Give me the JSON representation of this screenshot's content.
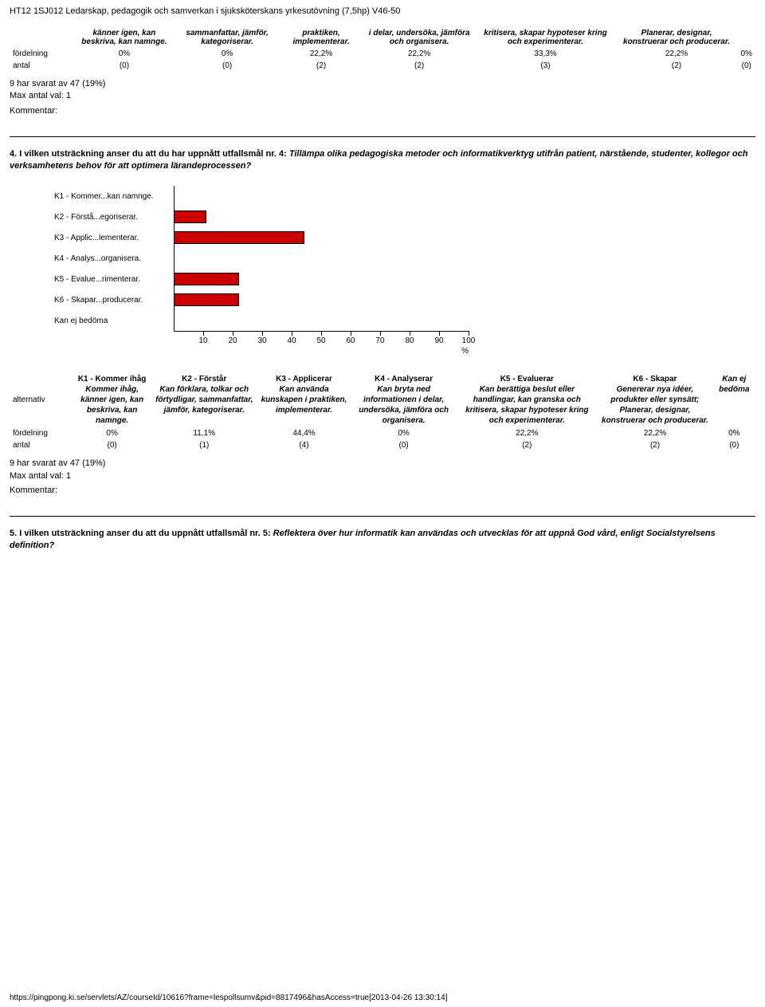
{
  "header": "HT12 1SJ012 Ledarskap, pedagogik och samverkan i sjuksköterskans yrkesutövning (7,5hp) V46-50",
  "table1": {
    "row_label_alt": "",
    "row_label_ford": "fördelning",
    "row_label_antal": "antal",
    "headers": [
      "känner igen, kan beskriva, kan namnge.",
      "sammanfattar, jämför, kategoriserar.",
      "praktiken, implementerar.",
      "i delar, undersöka, jämföra och organisera.",
      "kritisera, skapar hypoteser kring och experimenterar.",
      "Planerar, designar, konstruerar och producerar.",
      ""
    ],
    "fordelning": [
      "0%",
      "0%",
      "22,2%",
      "22,2%",
      "33,3%",
      "22,2%",
      "0%"
    ],
    "antal": [
      "(0)",
      "(0)",
      "(2)",
      "(2)",
      "(3)",
      "(2)",
      "(0)"
    ]
  },
  "meta": {
    "responded": "9 har svarat av 47 (19%)",
    "maxval": "Max antal val: 1",
    "kommentar": "Kommentar:"
  },
  "q4": {
    "prefix": "4. I vilken utsträckning anser du att du har uppnått utfallsmål nr. 4: ",
    "ital": "Tillämpa olika pedagogiska metoder och informatikverktyg utifrån patient, närstående, studenter, kollegor och verksamhetens behov för att optimera lärandeprocessen?"
  },
  "chart": {
    "categories": [
      "K1 - Kommer...kan namnge.",
      "K2 - Förstå...egoriserar.",
      "K3 - Applic...lementerar.",
      "K4 - Analys...organisera.",
      "K5 - Evalue...rimenterar.",
      "K6 - Skapar...producerar.",
      "Kan ej bedöma"
    ],
    "values": [
      0,
      11.1,
      44.4,
      0,
      22.2,
      22.2,
      0
    ],
    "bar_color": "#cc0000",
    "xmax": 100,
    "ticks": [
      10,
      20,
      30,
      40,
      50,
      60,
      70,
      80,
      90,
      100
    ],
    "axis_symbol": "%"
  },
  "table2": {
    "alt_label": "alternativ",
    "headers_top": [
      "",
      "",
      "",
      "",
      "K5 - Evaluerar",
      "K6 - Skapar",
      ""
    ],
    "headers_mid": [
      "K1 - Kommer ihåg",
      "K2 - Förstår",
      "K3 - Applicerar",
      "K4 - Analyserar",
      "",
      "",
      ""
    ],
    "headers": [
      "Kommer ihåg, känner igen, kan beskriva, kan namnge.",
      "Kan förklara, tolkar och förtydligar, sammanfattar, jämför, kategoriserar.",
      "Kan använda kunskapen i praktiken, implementerar.",
      "Kan bryta ned informationen i delar, undersöka, jämföra och organisera.",
      "Kan berättiga beslut eller handlingar, kan granska och kritisera, skapar hypoteser kring och experimenterar.",
      "Genererar nya idéer, produkter eller synsätt; Planerar, designar, konstruerar och producerar.",
      "Kan ej bedöma"
    ],
    "fordelning": [
      "0%",
      "11,1%",
      "44,4%",
      "0%",
      "22,2%",
      "22,2%",
      "0%"
    ],
    "antal": [
      "(0)",
      "(1)",
      "(4)",
      "(0)",
      "(2)",
      "(2)",
      "(0)"
    ]
  },
  "q5": {
    "prefix": "5. I vilken utsträckning anser du att du uppnått utfallsmål nr. 5: ",
    "ital": "Reflektera över hur informatik kan användas och utvecklas för att uppnå God vård, enligt Socialstyrelsens definition?"
  },
  "footer": {
    "url": "https://pingpong.ki.se/servlets/AZ/courseId/10616?frame=lespollsumv&pid=8817496&hasAccess=true[2013-04-26 13:30:14]"
  }
}
